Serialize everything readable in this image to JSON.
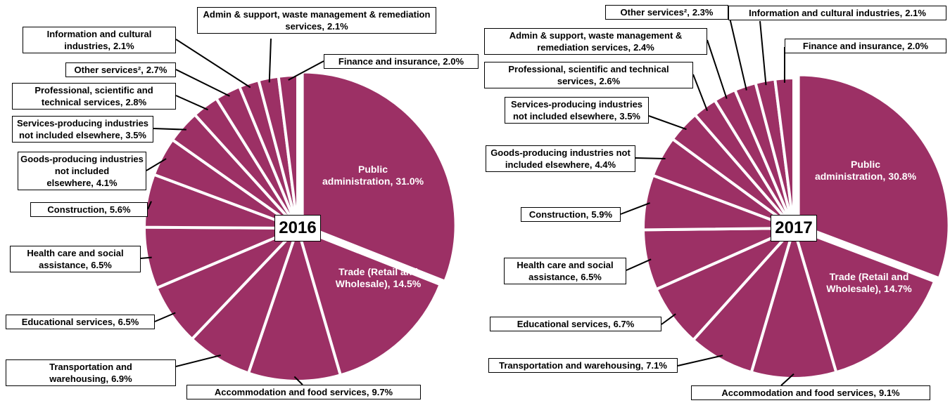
{
  "chart_data": [
    {
      "type": "pie",
      "center_label": "2016",
      "color": "#9c3065",
      "categories": [
        "Public administration,",
        "Trade (Retail and Wholesale),",
        "Accommodation and food services,",
        "Transportation and warehousing,",
        "Educational services,",
        "Health care and social assistance,",
        "Construction,",
        "Goods-producing industries not included elsewhere,",
        "Services-producing industries not included elsewhere,",
        "Professional, scientific and technical services,",
        "Other services²,",
        "Information and cultural industries,",
        "Admin &  support, waste management & remediation services,",
        "Finance and insurance,"
      ],
      "values": [
        31.0,
        14.5,
        9.7,
        6.9,
        6.5,
        6.5,
        5.6,
        4.1,
        3.5,
        2.8,
        2.7,
        2.1,
        2.1,
        2.0
      ],
      "value_labels": [
        "31.0%",
        "14.5%",
        "9.7%",
        "6.9%",
        "6.5%",
        "6.5%",
        "5.6%",
        "4.1%",
        "3.5%",
        "2.8%",
        "2.7%",
        "2.1%",
        "2.1%",
        "2.0%"
      ]
    },
    {
      "type": "pie",
      "center_label": "2017",
      "color": "#9c3065",
      "categories": [
        "Public administration,",
        "Trade (Retail and Wholesale),",
        "Accommodation and food services,",
        "Transportation and warehousing,",
        "Educational services,",
        "Health care and social assistance,",
        "Construction,",
        "Goods-producing industries not included elsewhere,",
        "Services-producing industries not included elsewhere,",
        "Professional, scientific and technical services,",
        "Admin &  support, waste management & remediation services,",
        "Other services²,",
        "Information and cultural industries,",
        "Finance and insurance,"
      ],
      "values": [
        30.8,
        14.7,
        9.1,
        7.1,
        6.7,
        6.5,
        5.9,
        4.4,
        3.5,
        2.6,
        2.4,
        2.3,
        2.1,
        2.0
      ],
      "value_labels": [
        "30.8%",
        "14.7%",
        "9.1%",
        "7.1%",
        "6.7%",
        "6.5%",
        "5.9%",
        "4.4%",
        "3.5%",
        "2.6%",
        "2.4%",
        "2.3%",
        "2.1%",
        "2.0%"
      ]
    }
  ]
}
